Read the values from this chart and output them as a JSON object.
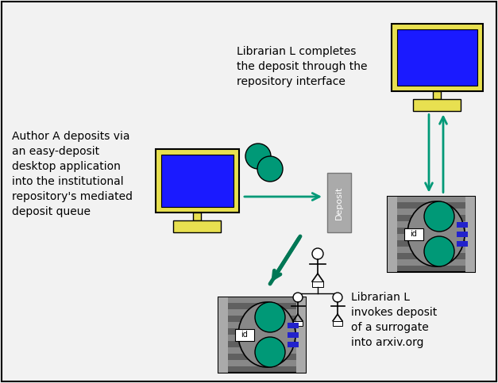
{
  "bg_color": "#f2f2f2",
  "text_author": "Author A deposits via\nan easy-deposit\ndesktop application\ninto the institutional\nrepository's mediated\ndeposit queue",
  "text_librarian_top": "Librarian L completes\nthe deposit through the\nrepository interface",
  "text_librarian_bottom": "Librarian L\ninvokes deposit\nof a surrogate\ninto arxiv.org",
  "monitor_yellow": "#e8e050",
  "monitor_blue": "#1a1aff",
  "teal": "#009977",
  "teal_dark": "#007755",
  "gray_dark": "#606060",
  "gray_mid": "#888888",
  "gray_light": "#aaaaaa",
  "deposit_gray": "#aaaaaa",
  "blue_button": "#2222cc",
  "white": "#ffffff",
  "black": "#000000",
  "arrow_teal": "#009977"
}
